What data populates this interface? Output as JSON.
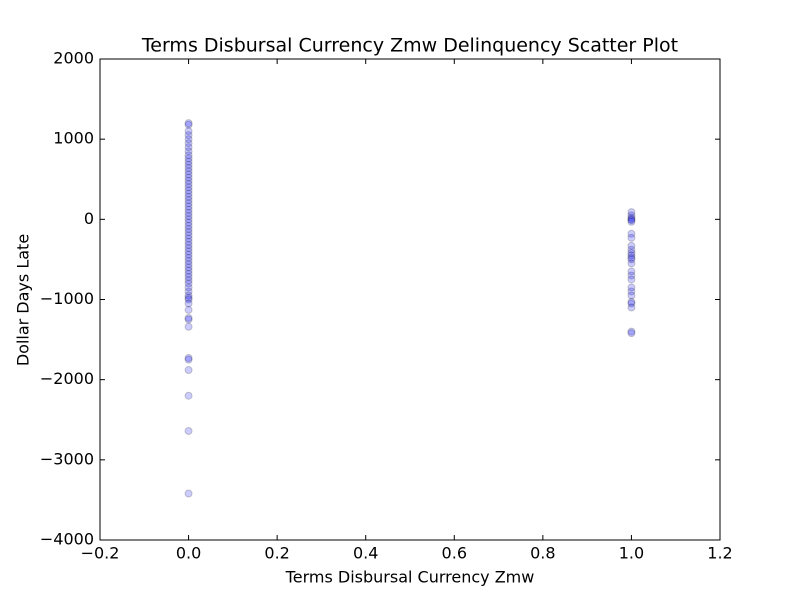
{
  "chart_data": {
    "type": "scatter",
    "title": "Terms Disbursal Currency Zmw Delinquency Scatter Plot",
    "x_label": "Terms Disbursal Currency Zmw",
    "y_label": "Dollar Days Late",
    "x": [
      0,
      0,
      0,
      0,
      0,
      0,
      0,
      0,
      0,
      0,
      0,
      0,
      0,
      0,
      0,
      0,
      0,
      0,
      0,
      0,
      0,
      0,
      0,
      0,
      0,
      0,
      0,
      0,
      0,
      0,
      0,
      0,
      0,
      0,
      0,
      0,
      0,
      0,
      0,
      0,
      0,
      0,
      0,
      0,
      0,
      0,
      0,
      0,
      0,
      0,
      0,
      0,
      0,
      0,
      0,
      0,
      0,
      0,
      0,
      0,
      0,
      0,
      0,
      0,
      0,
      1,
      1,
      1,
      1,
      1,
      1,
      1,
      1,
      1,
      1,
      1,
      1,
      1,
      1,
      1,
      1,
      1,
      1,
      1,
      1,
      1,
      1,
      1,
      1,
      1,
      1
    ],
    "values": [
      1200,
      1180,
      1100,
      1050,
      1000,
      950,
      900,
      850,
      800,
      760,
      720,
      680,
      640,
      600,
      560,
      520,
      480,
      440,
      400,
      360,
      320,
      280,
      240,
      200,
      160,
      120,
      80,
      40,
      0,
      -40,
      -80,
      -120,
      -160,
      -200,
      -240,
      -280,
      -320,
      -360,
      -400,
      -440,
      -480,
      -520,
      -560,
      -600,
      -640,
      -680,
      -720,
      -760,
      -800,
      -850,
      -900,
      -950,
      -980,
      -1000,
      -1050,
      -1130,
      -1230,
      -1250,
      -1340,
      -1730,
      -1750,
      -1880,
      -2200,
      -2640,
      -3420,
      90,
      50,
      20,
      0,
      -10,
      -30,
      -180,
      -230,
      -330,
      -380,
      -420,
      -450,
      -480,
      -500,
      -550,
      -650,
      -700,
      -750,
      -850,
      -900,
      -950,
      -1030,
      -1050,
      -1100,
      -1400,
      -1420
    ],
    "color": "#0000ff",
    "xlim": [
      -0.2,
      1.2
    ],
    "ylim": [
      -4000,
      2000
    ],
    "xticks": [
      {
        "value": -0.2,
        "label": "−0.2"
      },
      {
        "value": 0,
        "label": "0.0"
      },
      0.2,
      0.4,
      0.6,
      0.8,
      {
        "value": 1,
        "label": "1.0"
      },
      1.2
    ],
    "yticks": [
      {
        "value": -4000,
        "label": "−4000"
      },
      {
        "value": -3000,
        "label": "−3000"
      },
      {
        "value": -2000,
        "label": "−2000"
      },
      {
        "value": -1000,
        "label": "−1000"
      },
      0,
      1000,
      2000
    ]
  }
}
